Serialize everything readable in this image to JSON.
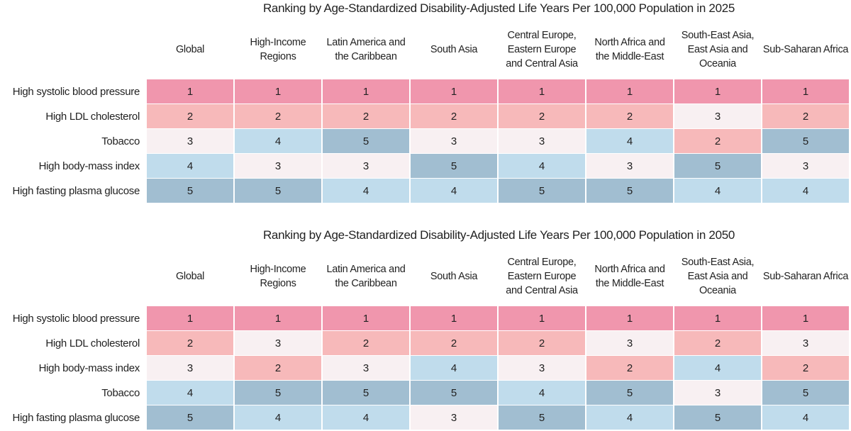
{
  "tables": [
    {
      "title": "Ranking by Age-Standardized Disability-Adjusted Life Years Per 100,000 Population in 2025",
      "columns": [
        "Global",
        "High-Income Regions",
        "Latin America and the Caribbean",
        "South Asia",
        "Central Europe, Eastern Europe and Central Asia",
        "North Africa and the Middle-East",
        "South-East Asia, East Asia and Oceania",
        "Sub-Saharan Africa"
      ],
      "rows": [
        {
          "label": "High systolic blood pressure",
          "values": [
            1,
            1,
            1,
            1,
            1,
            1,
            1,
            1
          ]
        },
        {
          "label": "High LDL cholesterol",
          "values": [
            2,
            2,
            2,
            2,
            2,
            2,
            3,
            2
          ]
        },
        {
          "label": "Tobacco",
          "values": [
            3,
            4,
            5,
            3,
            3,
            4,
            2,
            5
          ]
        },
        {
          "label": "High body-mass index",
          "values": [
            4,
            3,
            3,
            5,
            4,
            3,
            5,
            3
          ]
        },
        {
          "label": "High fasting plasma glucose",
          "values": [
            5,
            5,
            4,
            4,
            5,
            5,
            4,
            4
          ]
        }
      ]
    },
    {
      "title": "Ranking by Age-Standardized Disability-Adjusted Life Years Per 100,000 Population in 2050",
      "columns": [
        "Global",
        "High-Income Regions",
        "Latin America and the Caribbean",
        "South Asia",
        "Central Europe, Eastern Europe and Central Asia",
        "North Africa and the Middle-East",
        "South-East Asia, East Asia and Oceania",
        "Sub-Saharan Africa"
      ],
      "rows": [
        {
          "label": "High systolic blood pressure",
          "values": [
            1,
            1,
            1,
            1,
            1,
            1,
            1,
            1
          ]
        },
        {
          "label": "High LDL cholesterol",
          "values": [
            2,
            3,
            2,
            2,
            2,
            3,
            2,
            3
          ]
        },
        {
          "label": "High body-mass index",
          "values": [
            3,
            2,
            3,
            4,
            3,
            2,
            4,
            2
          ]
        },
        {
          "label": "Tobacco",
          "values": [
            4,
            5,
            5,
            5,
            4,
            5,
            3,
            5
          ]
        },
        {
          "label": "High fasting plasma glucose",
          "values": [
            5,
            4,
            4,
            3,
            5,
            4,
            5,
            4
          ]
        }
      ]
    }
  ],
  "rank_colors": [
    "#f096ad",
    "#f7b9ba",
    "#f8f0f2",
    "#c0dcec",
    "#a1bed1"
  ]
}
